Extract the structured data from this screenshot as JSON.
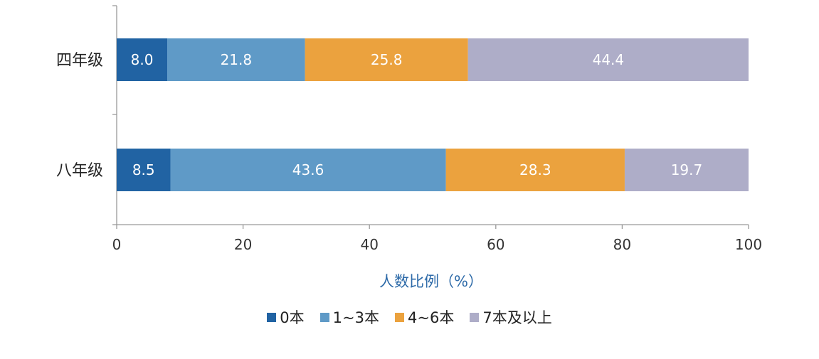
{
  "chart_data": {
    "type": "bar",
    "orientation": "horizontal",
    "stacked": true,
    "categories": [
      "四年级",
      "八年级"
    ],
    "series": [
      {
        "name": "0本",
        "values": [
          8.0,
          8.5
        ],
        "color": "#2163a3"
      },
      {
        "name": "1~3本",
        "values": [
          21.8,
          43.6
        ],
        "color": "#5f9ac7"
      },
      {
        "name": "4~6本",
        "values": [
          25.8,
          28.3
        ],
        "color": "#eba23e"
      },
      {
        "name": "7本及以上",
        "values": [
          44.4,
          19.7
        ],
        "color": "#aeadc8"
      }
    ],
    "value_labels": [
      [
        "8.0",
        "21.8",
        "25.8",
        "44.4"
      ],
      [
        "8.5",
        "43.6",
        "28.3",
        "19.7"
      ]
    ],
    "xlabel": "人数比例（%）",
    "ylabel": "",
    "xlim": [
      0,
      100
    ],
    "xticks": [
      "0",
      "20",
      "40",
      "60",
      "80",
      "100"
    ],
    "grid": false,
    "legend_position": "bottom"
  }
}
